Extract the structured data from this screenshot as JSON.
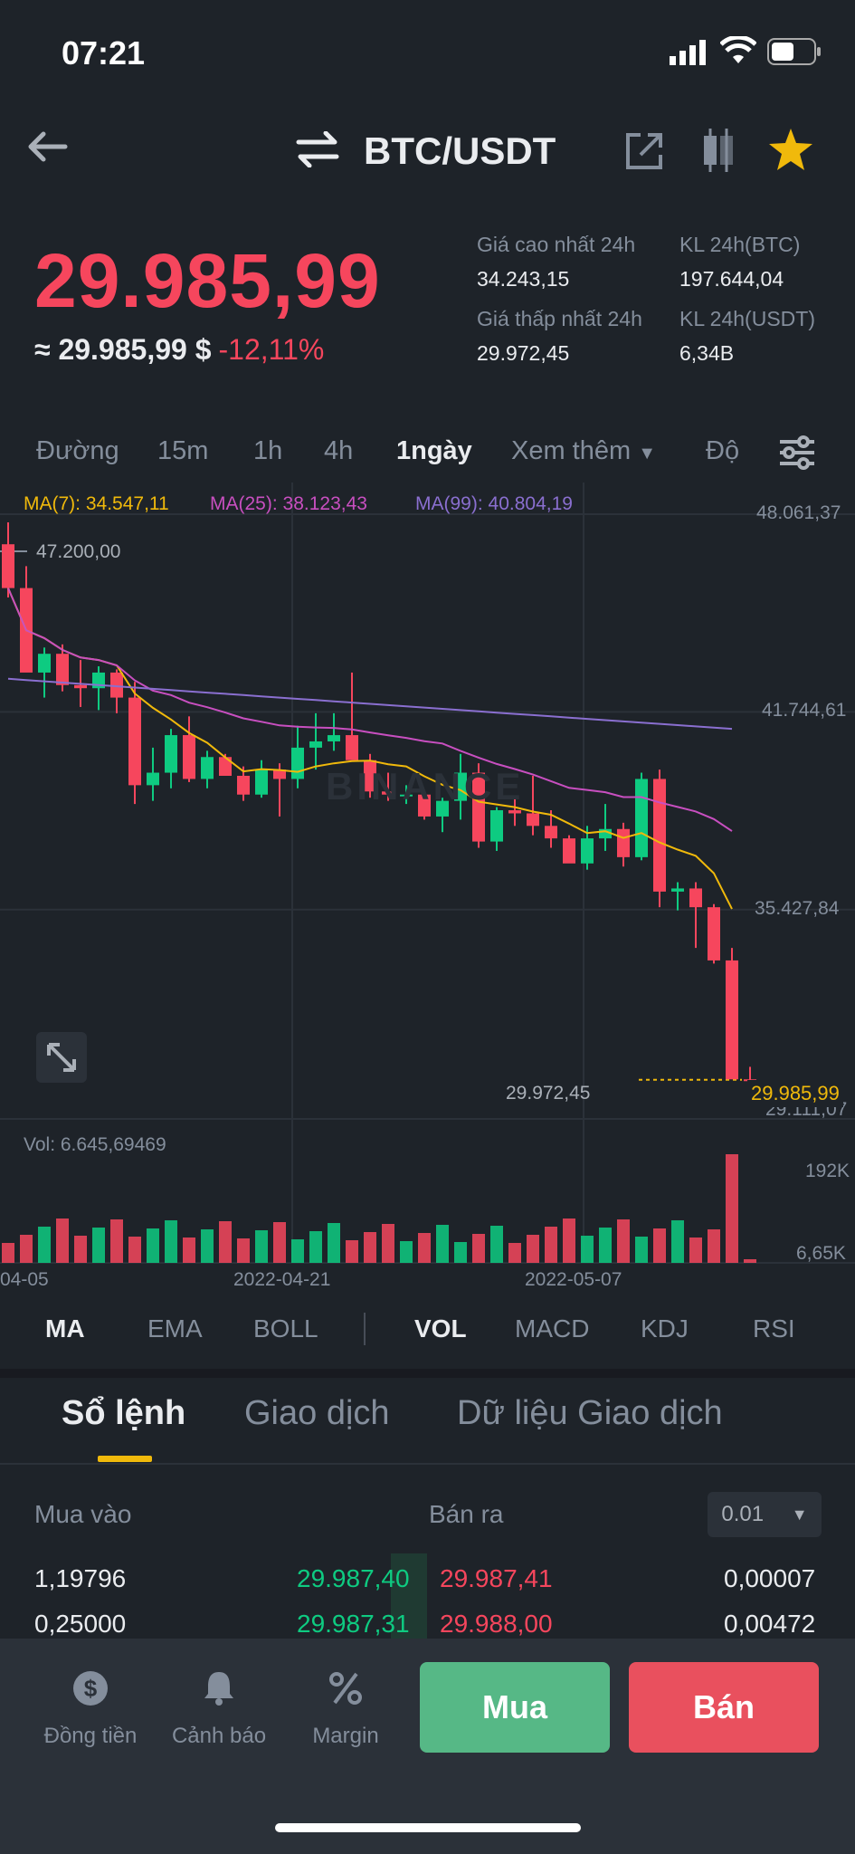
{
  "status_bar": {
    "time": "07:21"
  },
  "header": {
    "pair": "BTC/USDT"
  },
  "price": {
    "last": "29.985,99",
    "approx": "≈ 29.985,99 $",
    "change": "-12,11%"
  },
  "stats": {
    "high_label": "Giá cao nhất 24h",
    "high_value": "34.243,15",
    "vol_btc_label": "KL 24h(BTC)",
    "vol_btc_value": "197.644,04",
    "low_label": "Giá thấp nhất 24h",
    "low_value": "29.972,45",
    "vol_usdt_label": "KL 24h(USDT)",
    "vol_usdt_value": "6,34B"
  },
  "timeframes": [
    "Đường",
    "15m",
    "1h",
    "4h",
    "1ngày",
    "Xem thêm",
    "Độ"
  ],
  "active_timeframe": "1ngày",
  "chart": {
    "ma7": "MA(7): 34.547,11",
    "ma25": "MA(25): 38.123,43",
    "ma99": "MA(99): 40.804,19",
    "y_labels": [
      "48.061,37",
      "41.744,61",
      "35.427,84",
      "29.111,07"
    ],
    "high_marker": "47.200,00",
    "low_marker": "29.972,45",
    "current_price_tag": "29.985,99",
    "vol_label": "Vol: 6.645,69469",
    "vol_max": "192K",
    "vol_min": "6,65K",
    "x_labels": [
      "04-05",
      "2022-04-21",
      "2022-05-07"
    ],
    "watermark": "BINANCE",
    "colors": {
      "up": "#0ecb81",
      "down": "#f6465d",
      "ma7": "#f0b90b",
      "ma25": "#c84fc0",
      "ma99": "#8a6fd0"
    }
  },
  "chart_data": {
    "type": "candlestick",
    "ma_lines": [
      "MA(7)",
      "MA(25)",
      "MA(99)"
    ],
    "candles": [
      [
        47100,
        47800,
        45400,
        45700
      ],
      [
        45700,
        46400,
        43100,
        43000
      ],
      [
        43000,
        43800,
        42200,
        43600
      ],
      [
        43600,
        43900,
        42400,
        42600
      ],
      [
        42600,
        43400,
        41900,
        42500
      ],
      [
        42500,
        43200,
        41800,
        43000
      ],
      [
        43000,
        43100,
        41700,
        42200
      ],
      [
        42200,
        42700,
        38800,
        39400
      ],
      [
        39400,
        40600,
        38900,
        39800
      ],
      [
        39800,
        41200,
        39300,
        41000
      ],
      [
        41000,
        41600,
        39500,
        39600
      ],
      [
        39600,
        40500,
        39300,
        40300
      ],
      [
        40300,
        40400,
        39700,
        39700
      ],
      [
        39700,
        40000,
        38900,
        39100
      ],
      [
        39100,
        40200,
        39000,
        39900
      ],
      [
        39900,
        40100,
        38400,
        39600
      ],
      [
        39600,
        41300,
        39300,
        40600
      ],
      [
        40600,
        41700,
        39900,
        40800
      ],
      [
        40800,
        41700,
        40500,
        41000
      ],
      [
        41000,
        43000,
        40300,
        40200
      ],
      [
        40200,
        40400,
        39000,
        39200
      ],
      [
        39200,
        39800,
        38900,
        39100
      ],
      [
        39100,
        39400,
        38800,
        39100
      ],
      [
        39100,
        39200,
        38300,
        38400
      ],
      [
        38400,
        39000,
        37900,
        38900
      ],
      [
        38900,
        40400,
        38300,
        39800
      ],
      [
        39800,
        40100,
        37400,
        37600
      ],
      [
        37600,
        38700,
        37300,
        38600
      ],
      [
        38600,
        39000,
        38100,
        38500
      ],
      [
        38500,
        39700,
        37800,
        38100
      ],
      [
        38100,
        38600,
        37400,
        37700
      ],
      [
        37700,
        37800,
        37000,
        36900
      ],
      [
        36900,
        38100,
        36700,
        37700
      ],
      [
        37700,
        38800,
        37300,
        38000
      ],
      [
        38000,
        38200,
        36800,
        37100
      ],
      [
        37100,
        39800,
        37000,
        39600
      ],
      [
        39600,
        39900,
        35500,
        36000
      ],
      [
        36000,
        36300,
        35400,
        36100
      ],
      [
        36100,
        36300,
        34200,
        35500
      ],
      [
        35500,
        35600,
        33700,
        33800
      ],
      [
        33800,
        34200,
        30100,
        30000
      ],
      [
        30000,
        30400,
        29800,
        29986
      ]
    ],
    "volume_label": "Vol: 6.645,69469"
  },
  "indicators": [
    "MA",
    "EMA",
    "BOLL",
    "VOL",
    "MACD",
    "KDJ",
    "RSI"
  ],
  "orderbook": {
    "tabs": [
      "Sổ lệnh",
      "Giao dịch",
      "Dữ liệu Giao dịch"
    ],
    "buy_label": "Mua vào",
    "sell_label": "Bán ra",
    "precision": "0.01",
    "rows": [
      {
        "bid_qty": "1,19796",
        "bid_price": "29.987,40",
        "ask_price": "29.987,41",
        "ask_qty": "0,00007"
      },
      {
        "bid_qty": "0,25000",
        "bid_price": "29.987,31",
        "ask_price": "29.988,00",
        "ask_qty": "0,00472"
      }
    ]
  },
  "bottom_nav": {
    "items": [
      "Đồng tiền",
      "Cảnh báo",
      "Margin"
    ],
    "buy": "Mua",
    "sell": "Bán"
  }
}
